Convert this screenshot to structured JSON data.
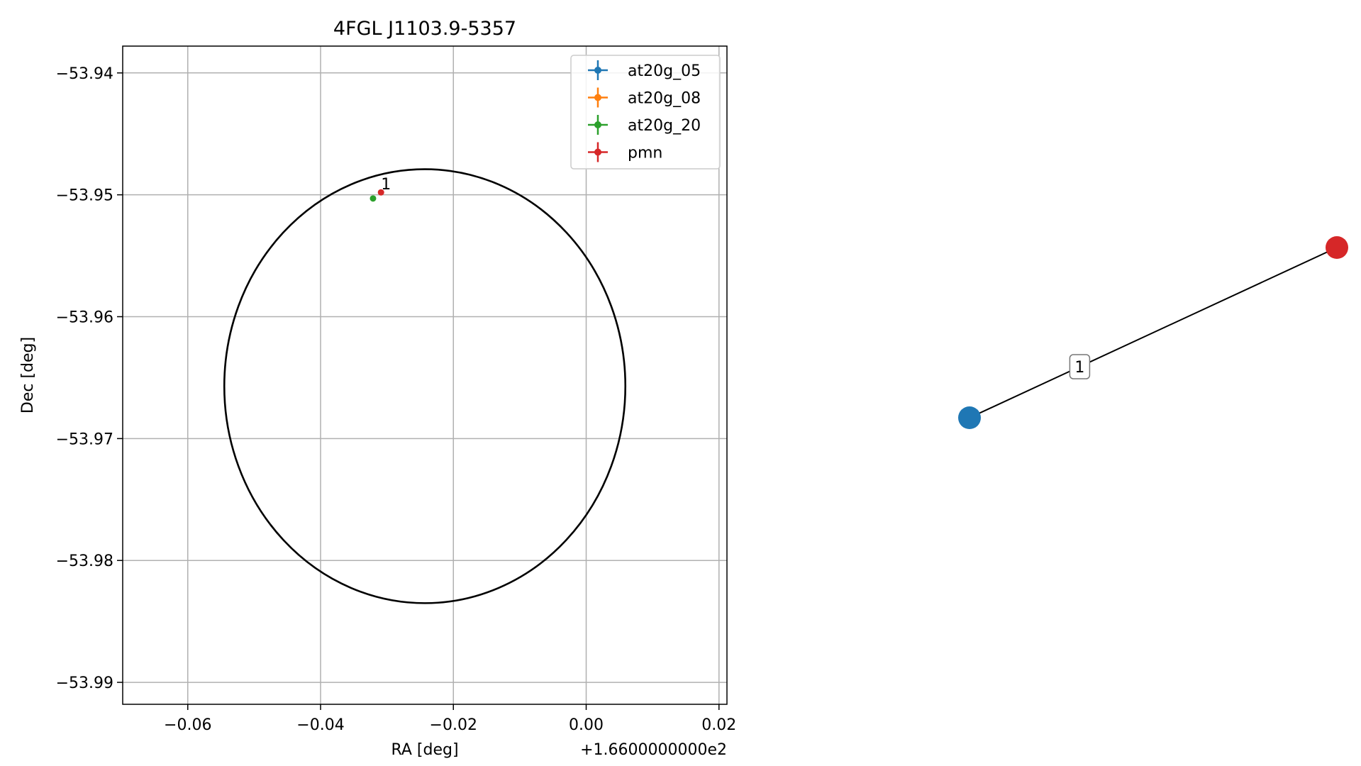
{
  "chart_data": [
    {
      "type": "scatter",
      "title": "4FGL J1103.9-5357",
      "xlabel": "RA [deg]",
      "ylabel": "Dec [deg]",
      "x_offset_label": "+1.6600000000e2",
      "xlim": [
        -0.0698,
        0.0212
      ],
      "ylim": [
        -53.9918,
        -53.9378
      ],
      "x_ticks": [
        -0.06,
        -0.04,
        -0.02,
        0.0,
        0.02
      ],
      "x_tick_labels": [
        "−0.06",
        "−0.04",
        "−0.02",
        "0.00",
        "0.02"
      ],
      "y_ticks": [
        -53.94,
        -53.95,
        -53.96,
        -53.97,
        -53.98,
        -53.99
      ],
      "y_tick_labels": [
        "−53.94",
        "−53.95",
        "−53.96",
        "−53.97",
        "−53.98",
        "−53.99"
      ],
      "grid": true,
      "legend_position": "top-right",
      "series": [
        {
          "name": "at20g_05",
          "color": "#1f77b4",
          "points": []
        },
        {
          "name": "at20g_08",
          "color": "#ff7f0e",
          "points": []
        },
        {
          "name": "at20g_20",
          "color": "#2ca02c",
          "points": [
            {
              "x": -0.0321,
              "y": -53.9503
            }
          ]
        },
        {
          "name": "pmn",
          "color": "#d62728",
          "points": [
            {
              "x": -0.0309,
              "y": -53.9498
            }
          ]
        }
      ],
      "annotations": [
        {
          "text": "1",
          "x": -0.0309,
          "y": -53.9498
        }
      ],
      "ellipse": {
        "center_x": -0.0243,
        "center_y": -53.9657,
        "radius_x": 0.0302,
        "radius_y": 0.0178,
        "color": "#000000"
      }
    },
    {
      "type": "network",
      "nodes": [
        {
          "id": "a",
          "color": "#1f77b4",
          "x": 0.0,
          "y": 0.0
        },
        {
          "id": "b",
          "color": "#d62728",
          "x": 1.0,
          "y": 1.0
        }
      ],
      "edges": [
        {
          "source": "a",
          "target": "b",
          "label": "1"
        }
      ]
    }
  ]
}
